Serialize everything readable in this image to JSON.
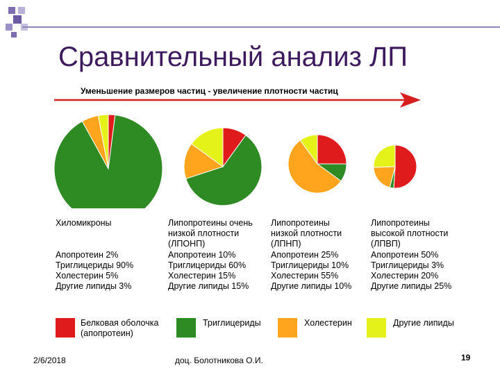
{
  "title": "Сравнительный анализ ЛП",
  "arrow_caption": "Уменьшение размеров частиц - увеличение плотности частиц",
  "colors": {
    "protein": "#e01b1b",
    "triglycerides": "#2e8b24",
    "cholesterol": "#ffa41c",
    "other_lipids": "#e4f21a",
    "arrow": "#d81f1f",
    "title": "#3d1a5e"
  },
  "chart_data": {
    "type": "pie",
    "component_names": [
      "Апопротеин",
      "Триглицериды",
      "Холестерин",
      "Другие липиды"
    ],
    "charts": [
      {
        "name_lines": [
          "",
          "",
          "Хиломикроны"
        ],
        "values": [
          2,
          90,
          5,
          3
        ],
        "value_lines": [
          "Апопротеин 2%",
          "Триглицериды 90%",
          "Холестерин 5%",
          "Другие липиды 3%"
        ]
      },
      {
        "name_lines": [
          "Липопротеины очень",
          "низкой плотности",
          "(ЛПОНП)"
        ],
        "values": [
          10,
          60,
          15,
          15
        ],
        "value_lines": [
          "Апопротеин 10%",
          "Триглицериды 60%",
          "Холестерин 15%",
          "Другие липиды 15%"
        ]
      },
      {
        "name_lines": [
          "Липопротеины",
          "низкой плотности",
          "(ЛПНП)"
        ],
        "values": [
          25,
          10,
          55,
          10
        ],
        "value_lines": [
          "Апопротеин 25%",
          "Триглицериды 10%",
          "Холестерин 55%",
          "Другие липиды 10%"
        ]
      },
      {
        "name_lines": [
          "Липопротеины",
          "высокой плотности",
          "(ЛПВП)"
        ],
        "values": [
          50,
          3,
          20,
          25
        ],
        "value_lines": [
          "Апопротеин 50%",
          "Триглицериды 3%",
          "Холестерин 20%",
          "Другие липиды 25%"
        ]
      }
    ],
    "legend": [
      {
        "lines": [
          "Белковая оболочка",
          "(апопротеин)"
        ]
      },
      {
        "lines": [
          "Триглицериды"
        ]
      },
      {
        "lines": [
          "Холестерин"
        ]
      },
      {
        "lines": [
          "Другие липиды"
        ]
      }
    ]
  },
  "footer": {
    "date": "2/6/2018",
    "author": "доц. Болотникова О.И.",
    "page": "19"
  }
}
